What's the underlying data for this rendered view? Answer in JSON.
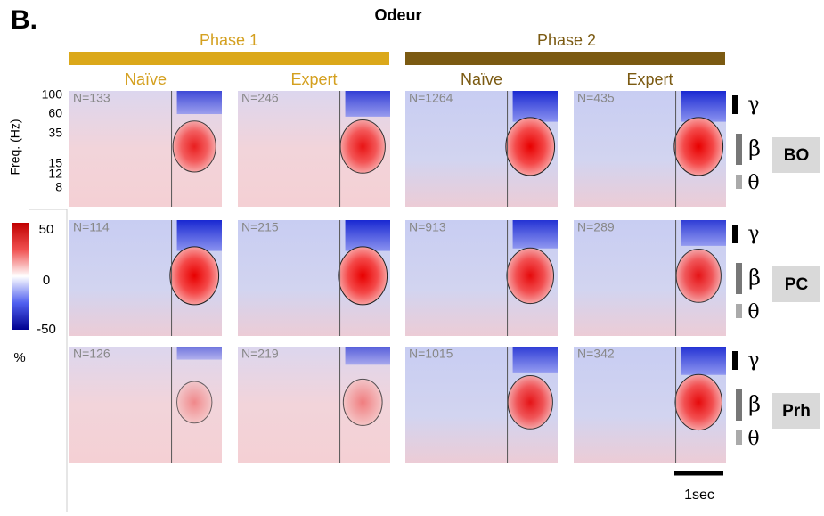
{
  "panel_label": "B.",
  "title": "Odeur",
  "phases": [
    {
      "label": "Phase 1",
      "conditions": [
        "Naïve",
        "Expert"
      ]
    },
    {
      "label": "Phase 2",
      "conditions": [
        "Naïve",
        "Expert"
      ]
    }
  ],
  "y_axis": {
    "label": "Freq. (Hz)",
    "ticks": [
      100,
      60,
      35,
      15,
      12,
      8
    ]
  },
  "rows": [
    {
      "region": "BO",
      "n": [
        "N=133",
        "N=246",
        "N=1264",
        "N=435"
      ]
    },
    {
      "region": "PC",
      "n": [
        "N=114",
        "N=215",
        "N=913",
        "N=289"
      ]
    },
    {
      "region": "Prh",
      "n": [
        "N=126",
        "N=219",
        "N=1015",
        "N=342"
      ]
    }
  ],
  "bands": [
    "γ",
    "β",
    "θ"
  ],
  "colorbar": {
    "ticks": [
      50,
      0,
      -50
    ],
    "unit": "%"
  },
  "scale_bar": "1sec"
}
